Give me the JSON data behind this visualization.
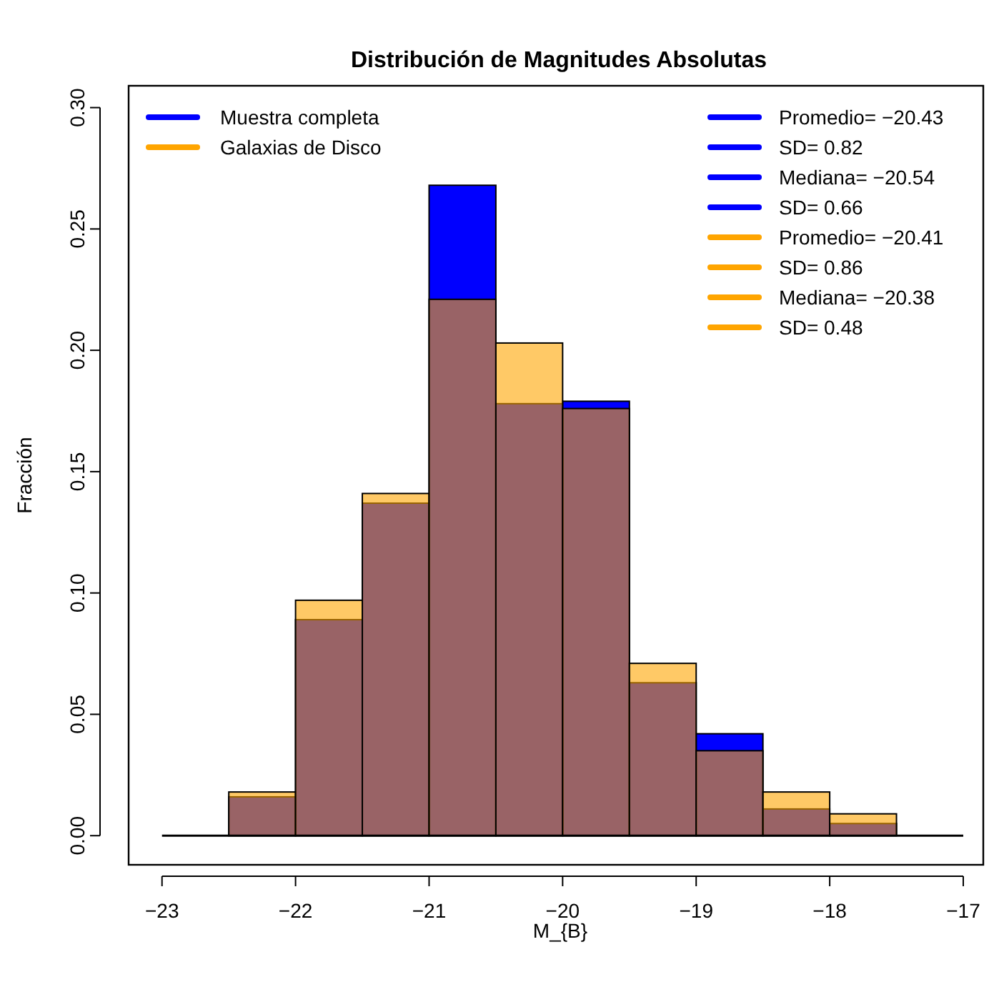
{
  "chart_data": {
    "type": "histogram",
    "title": "Distribución de Magnitudes Absolutas",
    "xlabel": "M_{B}",
    "ylabel": "Fracción",
    "bins": [
      -22.5,
      -22,
      -21.5,
      -21,
      -20.5,
      -20,
      -19.5,
      -19,
      -18.5,
      -18,
      -17.5
    ],
    "series": [
      {
        "name": "Muestra completa",
        "color": "#0000ff",
        "values": [
          0.016,
          0.089,
          0.137,
          0.268,
          0.178,
          0.179,
          0.063,
          0.042,
          0.011,
          0.005
        ]
      },
      {
        "name": "Galaxias de Disco",
        "color": "#ffa500",
        "values": [
          0.018,
          0.097,
          0.141,
          0.221,
          0.203,
          0.176,
          0.071,
          0.035,
          0.018,
          0.009
        ]
      }
    ],
    "xlim": [
      -23.25,
      -16.85
    ],
    "xticks": [
      -23,
      -22,
      -21,
      -20,
      -19,
      -18,
      -17
    ],
    "ylim": [
      -0.012,
      0.309
    ],
    "yticks": [
      {
        "value": 0,
        "label": "0.00"
      },
      0.05,
      {
        "value": 0.1,
        "label": "0.10"
      },
      0.15,
      {
        "value": 0.2,
        "label": "0.20"
      },
      0.25,
      {
        "value": 0.3,
        "label": "0.30"
      }
    ],
    "ref_lines": [
      {
        "axis": "y",
        "value": 0,
        "color": "#000000"
      }
    ],
    "legend": "top left",
    "annotations": [
      "Promedio= −20.43",
      "SD= 0.82",
      "Mediana= −20.54",
      "SD= 0.66",
      "Promedio= −20.41",
      "SD= 0.86",
      "Mediana= −20.38",
      "SD= 0.48"
    ]
  }
}
